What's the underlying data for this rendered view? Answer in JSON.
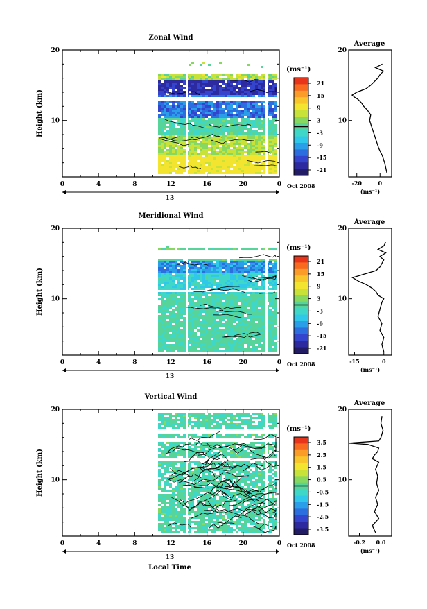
{
  "chart_data": [
    {
      "type": "heatmap",
      "title": "Zonal Wind",
      "ylabel": "Height (km)",
      "x_ticks": [
        "0",
        "4",
        "8",
        "12",
        "16",
        "20",
        "0"
      ],
      "date_label": "13",
      "month_label": "Oct 2008",
      "y_ticks": [
        "20",
        "10"
      ],
      "ylim": [
        2,
        20
      ],
      "colorbar_unit": "(ms⁻¹)",
      "colorbar_ticks": [
        "21",
        "15",
        "9",
        "3",
        "-3",
        "-9",
        "-15",
        "-21"
      ],
      "avg_title": "Average",
      "avg_x_ticks": [
        "-20",
        "0"
      ],
      "avg_xlabel": "(ms⁻¹)",
      "avg_xlim": [
        -27,
        10
      ],
      "profile": {
        "y": [
          2.5,
          4,
          5,
          6,
          7,
          8,
          9,
          10,
          10.8,
          11.5,
          12,
          12.5,
          13,
          13.3,
          13.6,
          14,
          14.5,
          15,
          15.5,
          16,
          16.5,
          17,
          17.5,
          18
        ],
        "x": [
          6,
          4,
          2,
          -1,
          -3,
          -5,
          -7,
          -9,
          -8,
          -11,
          -14,
          -16,
          -19,
          -22,
          -24,
          -20,
          -12,
          -8,
          -5,
          -2,
          0,
          3,
          -4,
          2
        ]
      }
    },
    {
      "type": "heatmap",
      "title": "Meridional Wind",
      "ylabel": "Height (km)",
      "x_ticks": [
        "0",
        "4",
        "8",
        "12",
        "16",
        "20",
        "0"
      ],
      "date_label": "13",
      "month_label": "Oct 2008",
      "y_ticks": [
        "20",
        "10"
      ],
      "ylim": [
        2,
        20
      ],
      "colorbar_unit": "(ms⁻¹)",
      "colorbar_ticks": [
        "21",
        "15",
        "9",
        "3",
        "-3",
        "-9",
        "-15",
        "-21"
      ],
      "avg_title": "Average",
      "avg_x_ticks": [
        "-15",
        "0"
      ],
      "avg_xlabel": "(ms⁻¹)",
      "avg_xlim": [
        -18,
        4
      ],
      "profile": {
        "y": [
          2.5,
          3.5,
          4.5,
          5.5,
          6.5,
          7.5,
          8.5,
          9.5,
          10,
          10.5,
          11,
          11.5,
          12,
          12.5,
          13,
          13.5,
          14,
          14.5,
          15,
          15.5,
          16,
          16.5,
          17,
          17.5,
          18
        ],
        "x": [
          0,
          -1,
          0,
          -2,
          -1,
          -3,
          -2,
          -1,
          0,
          -3,
          -4,
          -6,
          -9,
          -13,
          -16,
          -10,
          -4,
          -2,
          -1,
          0,
          -2,
          1,
          -3,
          0,
          1
        ]
      }
    },
    {
      "type": "heatmap",
      "title": "Vertical Wind",
      "ylabel": "Height (km)",
      "xlabel": "Local Time",
      "x_ticks": [
        "0",
        "4",
        "8",
        "12",
        "16",
        "20",
        "0"
      ],
      "date_label": "13",
      "month_label": "Oct 2008",
      "y_ticks": [
        "20",
        "10"
      ],
      "ylim": [
        2,
        20
      ],
      "colorbar_unit": "(ms⁻¹)",
      "colorbar_ticks": [
        "3.5",
        "2.5",
        "1.5",
        "0.5",
        "-0.5",
        "-1.5",
        "-2.5",
        "-3.5"
      ],
      "avg_title": "Average",
      "avg_x_ticks": [
        "-0.2",
        "0.0"
      ],
      "avg_xlabel": "(ms⁻¹)",
      "avg_xlim": [
        -0.3,
        0.1
      ],
      "profile": {
        "y": [
          2.5,
          3.5,
          4.5,
          5.5,
          6.5,
          7.5,
          8.5,
          9.5,
          10.5,
          11.5,
          12.5,
          13,
          13.5,
          14,
          14.5,
          15,
          15.2,
          15.5,
          16,
          17,
          18,
          19
        ],
        "x": [
          -0.05,
          -0.08,
          -0.02,
          -0.06,
          -0.03,
          -0.05,
          -0.02,
          -0.04,
          -0.03,
          -0.05,
          -0.02,
          -0.08,
          -0.06,
          -0.03,
          -0.02,
          -0.12,
          -0.3,
          -0.02,
          0.0,
          0.02,
          0.0,
          0.01
        ]
      }
    }
  ]
}
